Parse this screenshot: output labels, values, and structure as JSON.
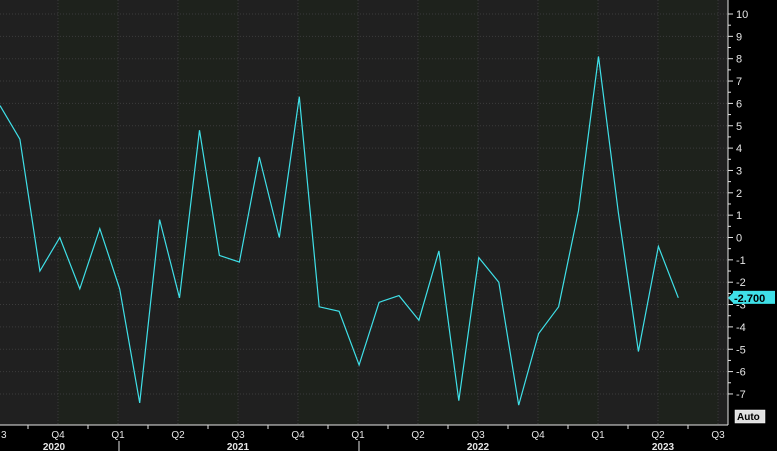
{
  "chart_data": {
    "type": "line",
    "series": [
      {
        "color": "#3fe0e8",
        "values": [
          5.9,
          4.4,
          -1.5,
          0.0,
          -2.3,
          0.4,
          -2.3,
          -7.4,
          0.8,
          -2.7,
          4.8,
          -0.8,
          -1.1,
          3.6,
          0.0,
          6.3,
          -3.1,
          -3.3,
          -5.7,
          -2.9,
          -2.6,
          -3.7,
          -0.6,
          -7.3,
          -0.9,
          -2.0,
          -7.5,
          -4.3,
          -3.1,
          1.2,
          8.1,
          1.1,
          -5.1,
          -0.4,
          -2.7
        ]
      }
    ],
    "ylim": [
      -8,
      10.5
    ],
    "y_ticks": [
      "10",
      "9",
      "8",
      "7",
      "6",
      "5",
      "4",
      "3",
      "2",
      "1",
      "0",
      "-1",
      "-2",
      "-3",
      "-4",
      "-5",
      "-6",
      "-7"
    ],
    "quarter_ticks": [
      "3",
      "Q4",
      "Q1",
      "Q2",
      "Q3",
      "Q4",
      "Q1",
      "Q2",
      "Q3",
      "Q4",
      "Q1",
      "Q2",
      "Q3"
    ],
    "year_labels": [
      "2020",
      "2021",
      "2022",
      "2023"
    ],
    "last_value_label": "-2.700",
    "scale_label": "Auto",
    "grid": true,
    "colors": {
      "background": "#000000",
      "plot_fill": "#202020",
      "plot_fill_alt": "#1e221c",
      "grid": "#3b3b3b",
      "line": "#3fe0e8",
      "axis_text": "#e6e6e6"
    }
  }
}
